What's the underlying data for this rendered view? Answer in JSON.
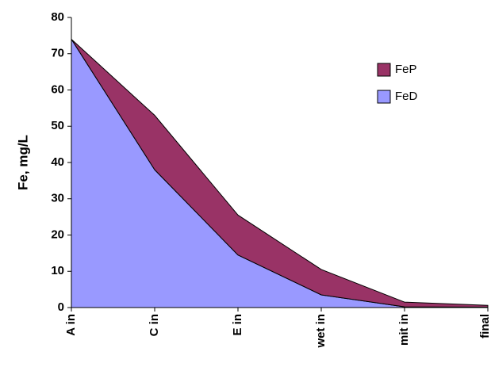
{
  "chart_data": {
    "type": "stacked-area",
    "y_label": "Fe, mg/L",
    "categories": [
      "A in",
      "C in",
      "E in",
      "wet in",
      "mit in",
      "final"
    ],
    "series": [
      {
        "name": "FeD",
        "color": "#9999ff",
        "values": [
          74,
          38,
          14.5,
          3.5,
          0.2,
          0.1
        ]
      },
      {
        "name": "FeP",
        "color": "#993366",
        "values": [
          0,
          15,
          11,
          7,
          1.3,
          0.5
        ]
      }
    ],
    "ylim": [
      0,
      80
    ],
    "yticks": [
      0,
      10,
      20,
      30,
      40,
      50,
      60,
      70,
      80
    ],
    "grid": false
  }
}
